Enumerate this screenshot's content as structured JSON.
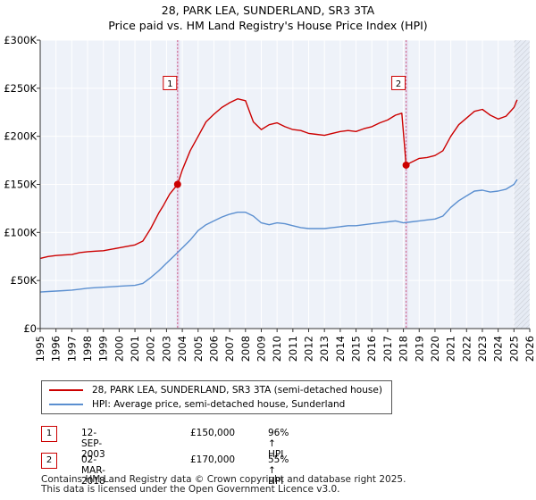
{
  "title": "28, PARK LEA, SUNDERLAND, SR3 3TA",
  "subtitle": "Price paid vs. HM Land Registry's House Price Index (HPI)",
  "legend": [
    {
      "label": "28, PARK LEA, SUNDERLAND, SR3 3TA (semi-detached house)",
      "color": "#cc0000"
    },
    {
      "label": "HPI: Average price, semi-detached house, Sunderland",
      "color": "#5b8fd0"
    }
  ],
  "sales": [
    {
      "id": "1",
      "date": "12-SEP-2003",
      "price": "£150,000",
      "hpi_change": "96% ↑ HPI"
    },
    {
      "id": "2",
      "date": "02-MAR-2018",
      "price": "£170,000",
      "hpi_change": "55% ↑ HPI"
    }
  ],
  "footer": {
    "line1": "Contains HM Land Registry data © Crown copyright and database right 2025.",
    "line2": "This data is licensed under the Open Government Licence v3.0."
  },
  "chart_data": {
    "type": "line",
    "title": "28, PARK LEA, SUNDERLAND, SR3 3TA",
    "subtitle": "Price paid vs. HM Land Registry's House Price Index (HPI)",
    "xlim": [
      1995,
      2026
    ],
    "ylim": [
      0,
      300000
    ],
    "x_ticks": [
      "1995",
      "1996",
      "1997",
      "1998",
      "1999",
      "2000",
      "2001",
      "2002",
      "2003",
      "2004",
      "2005",
      "2006",
      "2007",
      "2008",
      "2009",
      "2010",
      "2011",
      "2012",
      "2013",
      "2014",
      "2015",
      "2016",
      "2017",
      "2018",
      "2019",
      "2020",
      "2021",
      "2022",
      "2023",
      "2024",
      "2025",
      "2026"
    ],
    "y_ticks": [
      {
        "value": 0,
        "label": "£0"
      },
      {
        "value": 50000,
        "label": "£50K"
      },
      {
        "value": 100000,
        "label": "£100K"
      },
      {
        "value": 150000,
        "label": "£150K"
      },
      {
        "value": 200000,
        "label": "£200K"
      },
      {
        "value": 250000,
        "label": "£250K"
      },
      {
        "value": 300000,
        "label": "£300K"
      }
    ],
    "forecast_from": 2025.0,
    "series": [
      {
        "name": "28, PARK LEA, SUNDERLAND, SR3 3TA (semi-detached house)",
        "color": "#cc0000",
        "x": [
          1995.0,
          1995.5,
          1996.0,
          1996.5,
          1997.0,
          1997.5,
          1998.0,
          1998.5,
          1999.0,
          1999.5,
          2000.0,
          2000.5,
          2001.0,
          2001.5,
          2002.0,
          2002.5,
          2002.8,
          2003.2,
          2003.7,
          2004.0,
          2004.5,
          2005.0,
          2005.5,
          2006.0,
          2006.5,
          2007.0,
          2007.5,
          2008.0,
          2008.5,
          2009.0,
          2009.5,
          2010.0,
          2010.5,
          2011.0,
          2011.5,
          2012.0,
          2012.5,
          2013.0,
          2013.5,
          2014.0,
          2014.5,
          2015.0,
          2015.5,
          2016.0,
          2016.5,
          2017.0,
          2017.5,
          2017.9,
          2018.17,
          2018.5,
          2019.0,
          2019.5,
          2020.0,
          2020.5,
          2021.0,
          2021.5,
          2022.0,
          2022.5,
          2023.0,
          2023.5,
          2024.0,
          2024.5,
          2025.0,
          2025.2
        ],
        "y": [
          73000,
          75000,
          76000,
          76500,
          77000,
          79000,
          80000,
          80500,
          81000,
          82500,
          84000,
          85500,
          87000,
          91000,
          104000,
          120000,
          128000,
          140000,
          150000,
          165000,
          185000,
          200000,
          215000,
          223000,
          230000,
          235000,
          239000,
          237000,
          215000,
          207000,
          212000,
          214000,
          210000,
          207000,
          206000,
          203000,
          202000,
          201000,
          203000,
          205000,
          206000,
          205000,
          208000,
          210000,
          214000,
          217000,
          222000,
          224000,
          170000,
          173000,
          177000,
          178000,
          180000,
          185000,
          200000,
          212000,
          219000,
          226000,
          228000,
          222000,
          218000,
          221000,
          230000,
          238000
        ]
      },
      {
        "name": "HPI: Average price, semi-detached house, Sunderland",
        "color": "#5b8fd0",
        "x": [
          1995.0,
          1995.5,
          1996.0,
          1996.5,
          1997.0,
          1997.5,
          1998.0,
          1998.5,
          1999.0,
          1999.5,
          2000.0,
          2000.5,
          2001.0,
          2001.5,
          2002.0,
          2002.5,
          2003.0,
          2003.5,
          2004.0,
          2004.5,
          2005.0,
          2005.5,
          2006.0,
          2006.5,
          2007.0,
          2007.5,
          2008.0,
          2008.5,
          2009.0,
          2009.5,
          2010.0,
          2010.5,
          2011.0,
          2011.5,
          2012.0,
          2012.5,
          2013.0,
          2013.5,
          2014.0,
          2014.5,
          2015.0,
          2015.5,
          2016.0,
          2016.5,
          2017.0,
          2017.5,
          2018.0,
          2018.5,
          2019.0,
          2019.5,
          2020.0,
          2020.5,
          2021.0,
          2021.5,
          2022.0,
          2022.5,
          2023.0,
          2023.5,
          2024.0,
          2024.5,
          2025.0,
          2025.2
        ],
        "y": [
          38000,
          38500,
          39000,
          39500,
          40000,
          41000,
          42000,
          42500,
          43000,
          43500,
          44000,
          44500,
          45000,
          47000,
          53000,
          60000,
          68000,
          76000,
          84000,
          92000,
          102000,
          108000,
          112000,
          116000,
          119000,
          121000,
          121000,
          117000,
          110000,
          108000,
          110000,
          109000,
          107000,
          105000,
          104000,
          104000,
          104000,
          105000,
          106000,
          107000,
          107000,
          108000,
          109000,
          110000,
          111000,
          112000,
          110000,
          111000,
          112000,
          113000,
          114000,
          117000,
          126000,
          133000,
          138000,
          143000,
          144000,
          142000,
          143000,
          145000,
          150000,
          155000
        ]
      }
    ],
    "annotations": [
      {
        "id": "1",
        "x": 2003.7,
        "y": 150000,
        "label_y": 255000
      },
      {
        "id": "2",
        "x": 2018.17,
        "y": 170000,
        "label_y": 255000
      }
    ]
  }
}
